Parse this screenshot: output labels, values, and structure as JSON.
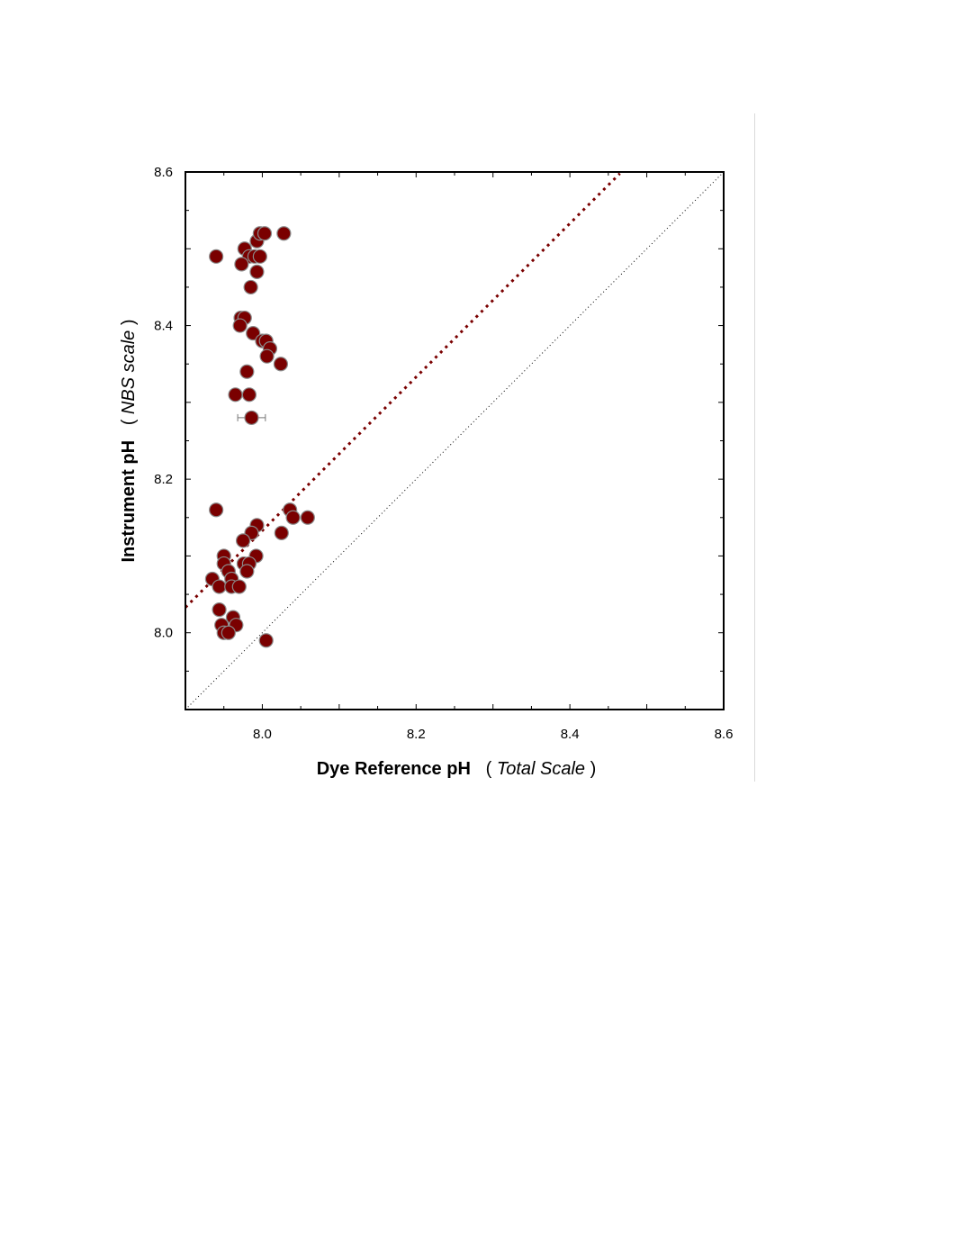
{
  "chart_data": {
    "type": "scatter",
    "xlabel": {
      "bold": "Dye Reference pH",
      "open": "( ",
      "italic": "Total Scale",
      "close": " )"
    },
    "ylabel": {
      "bold": "Instrument pH",
      "open": "( ",
      "italic": "NBS scale",
      "close": " )"
    },
    "xlim": [
      7.9,
      8.6
    ],
    "ylim": [
      7.9,
      8.6
    ],
    "xticks": [
      8.0,
      8.2,
      8.4,
      8.6
    ],
    "yticks": [
      8.0,
      8.2,
      8.4,
      8.6
    ],
    "xtick_labels": [
      "8.0",
      "8.2",
      "8.4",
      "8.6"
    ],
    "ytick_labels": [
      "8.0",
      "8.2",
      "8.4",
      "8.6"
    ],
    "grid": false,
    "marker_color": "#7a0000",
    "marker_edge": "#8a8a8a",
    "fit_line_color": "#7a0000",
    "points": [
      [
        7.94,
        8.49
      ],
      [
        7.977,
        8.5
      ],
      [
        7.983,
        8.49
      ],
      [
        7.99,
        8.49
      ],
      [
        7.997,
        8.49
      ],
      [
        7.973,
        8.48
      ],
      [
        7.993,
        8.47
      ],
      [
        7.985,
        8.45
      ],
      [
        7.993,
        8.51
      ],
      [
        7.997,
        8.52
      ],
      [
        8.003,
        8.52
      ],
      [
        8.028,
        8.52
      ],
      [
        7.972,
        8.41
      ],
      [
        7.977,
        8.41
      ],
      [
        7.971,
        8.4
      ],
      [
        7.988,
        8.39
      ],
      [
        8.0,
        8.38
      ],
      [
        8.005,
        8.38
      ],
      [
        8.01,
        8.37
      ],
      [
        8.006,
        8.36
      ],
      [
        8.024,
        8.35
      ],
      [
        7.98,
        8.34
      ],
      [
        7.965,
        8.31
      ],
      [
        7.983,
        8.31
      ],
      [
        7.986,
        8.28
      ],
      [
        7.94,
        8.16
      ],
      [
        8.036,
        8.16
      ],
      [
        8.04,
        8.15
      ],
      [
        8.059,
        8.15
      ],
      [
        7.993,
        8.14
      ],
      [
        7.986,
        8.13
      ],
      [
        8.025,
        8.13
      ],
      [
        7.975,
        8.12
      ],
      [
        7.95,
        8.1
      ],
      [
        7.992,
        8.1
      ],
      [
        7.95,
        8.09
      ],
      [
        7.976,
        8.09
      ],
      [
        7.983,
        8.09
      ],
      [
        7.956,
        8.08
      ],
      [
        7.98,
        8.08
      ],
      [
        7.935,
        8.07
      ],
      [
        7.96,
        8.07
      ],
      [
        7.944,
        8.06
      ],
      [
        7.96,
        8.06
      ],
      [
        7.97,
        8.06
      ],
      [
        7.944,
        8.03
      ],
      [
        7.962,
        8.02
      ],
      [
        7.947,
        8.01
      ],
      [
        7.966,
        8.01
      ],
      [
        7.95,
        8.0
      ],
      [
        7.956,
        8.0
      ],
      [
        8.005,
        7.99
      ]
    ],
    "error_bars": [
      {
        "x": 7.986,
        "y": 8.28,
        "xerr": 0.018
      }
    ],
    "lines": [
      {
        "style": "dotted-thick",
        "x": [
          7.9,
          8.465
        ],
        "y": [
          8.033,
          8.598
        ]
      },
      {
        "style": "dotted-thin",
        "x": [
          7.9,
          8.6
        ],
        "y": [
          7.9,
          8.6
        ]
      }
    ]
  }
}
